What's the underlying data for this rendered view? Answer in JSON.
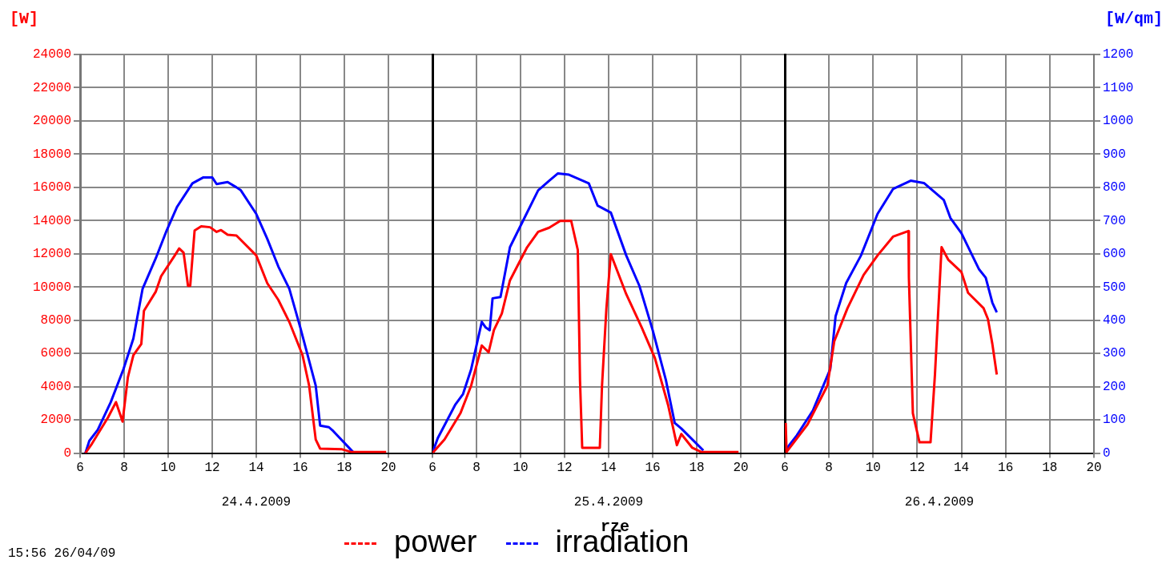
{
  "chart_data": [
    {
      "type": "line",
      "xlabel": "24.4.2009",
      "ylabel": "[W]",
      "xlim": [
        6,
        22
      ],
      "xticks": [
        6,
        8,
        10,
        12,
        14,
        16,
        18,
        20
      ],
      "ylim": [
        0,
        24000
      ],
      "yticks": [
        0,
        2000,
        4000,
        6000,
        8000,
        10000,
        12000,
        14000,
        16000,
        18000,
        20000,
        22000,
        24000
      ],
      "y2lim": [
        0,
        1200
      ],
      "grid": true,
      "legend": false,
      "marker": "none",
      "line_style": "solid",
      "annotations": [
        "15:56 26/04/09"
      ],
      "series": [
        {
          "color": "#ff0000",
          "x": [
            6.24,
            6.54,
            7.27,
            7.63,
            7.93,
            8.17,
            8.42,
            8.78,
            8.9,
            9.44,
            9.68,
            10.3,
            10.5,
            10.7,
            10.9,
            11.0,
            11.2,
            11.5,
            11.9,
            12.2,
            12.4,
            12.7,
            13.1,
            14.0,
            14.5,
            15.0,
            15.5,
            16.1,
            16.4,
            16.7,
            16.9,
            17.9,
            18.3,
            19.9
          ],
          "values": [
            0,
            570,
            2150,
            3070,
            1900,
            4570,
            5900,
            6570,
            8570,
            9730,
            10650,
            11900,
            12320,
            12070,
            10070,
            10070,
            13400,
            13650,
            13600,
            13320,
            13430,
            13150,
            13100,
            11900,
            10230,
            9230,
            7900,
            5900,
            4070,
            820,
            270,
            230,
            70,
            70
          ]
        },
        {
          "color": "#0000ff",
          "axis": "y2",
          "x": [
            6.24,
            6.42,
            6.8,
            7.39,
            7.97,
            8.42,
            8.84,
            9.44,
            9.93,
            10.4,
            11.1,
            11.6,
            12.0,
            12.2,
            12.7,
            13.1,
            13.3,
            14.0,
            14.5,
            15.0,
            15.5,
            16.0,
            16.3,
            16.7,
            16.9,
            17.3,
            17.5,
            18.4
          ],
          "values": [
            0,
            37,
            70,
            153,
            253,
            345,
            495,
            587,
            670,
            741,
            812,
            830,
            830,
            810,
            816,
            800,
            791,
            720,
            645,
            562,
            495,
            378,
            303,
            203,
            83,
            78,
            66,
            3
          ]
        }
      ]
    },
    {
      "type": "line",
      "xlabel": "25.4.2009",
      "xlim": [
        6,
        22
      ],
      "xticks": [
        6,
        8,
        10,
        12,
        14,
        16,
        18,
        20
      ],
      "ylim": [
        0,
        24000
      ],
      "yticks": [
        0,
        2000,
        4000,
        6000,
        8000,
        10000,
        12000,
        14000,
        16000,
        18000,
        20000,
        22000,
        24000
      ],
      "y2lim": [
        0,
        1200
      ],
      "y2ticks": [
        0,
        100,
        200,
        300,
        400,
        500,
        600,
        700,
        800,
        900,
        1000,
        1100,
        1200
      ],
      "tick_labels": "x",
      "grid": true,
      "legend": "bottom",
      "marker": "none",
      "line_style": "solid",
      "annotations": [
        "rze"
      ],
      "series": [
        {
          "name": "power",
          "color": "#ff0000",
          "x": [
            6.0,
            6.55,
            7.27,
            7.76,
            8.24,
            8.55,
            8.79,
            9.15,
            9.52,
            10.3,
            10.8,
            11.3,
            11.8,
            12.3,
            12.6,
            12.7,
            12.8,
            13.6,
            13.7,
            13.9,
            14.1,
            14.8,
            15.5,
            16.1,
            16.7,
            17.1,
            17.3,
            17.8,
            18.2,
            19.9
          ],
          "values": [
            0,
            820,
            2400,
            4070,
            6480,
            6070,
            7400,
            8400,
            10400,
            12400,
            13320,
            13570,
            13980,
            13980,
            12230,
            4400,
            320,
            320,
            4070,
            8730,
            11980,
            9570,
            7570,
            5730,
            2900,
            480,
            1150,
            320,
            70,
            70
          ]
        },
        {
          "name": "irradiation",
          "color": "#0000ff",
          "axis": "y2",
          "x": [
            6.0,
            6.24,
            7.03,
            7.39,
            7.76,
            8.24,
            8.42,
            8.6,
            8.73,
            9.09,
            9.52,
            10.2,
            10.8,
            11.3,
            11.7,
            12.2,
            13.1,
            13.5,
            14.1,
            14.8,
            15.4,
            16.0,
            16.6,
            17.0,
            17.3,
            18.3
          ],
          "values": [
            0,
            45,
            145,
            178,
            253,
            395,
            378,
            370,
            466,
            470,
            620,
            711,
            791,
            820,
            842,
            838,
            812,
            745,
            724,
            595,
            503,
            370,
            220,
            91,
            74,
            8
          ]
        }
      ]
    },
    {
      "type": "line",
      "xlabel": "26.4.2009",
      "y2label": "[W/qm]",
      "xlim": [
        6,
        20
      ],
      "xticks": [
        6,
        8,
        10,
        12,
        14,
        16,
        18,
        20
      ],
      "ylim": [
        0,
        24000
      ],
      "y2lim": [
        0,
        1200
      ],
      "y2ticks": [
        0,
        100,
        200,
        300,
        400,
        500,
        600,
        700,
        800,
        900,
        1000,
        1100,
        1200
      ],
      "grid": true,
      "legend": false,
      "marker": "none",
      "line_style": "solid",
      "series": [
        {
          "color": "#ff0000",
          "x": [
            6.04,
            6.08,
            7.03,
            7.93,
            8.24,
            8.84,
            9.57,
            10.2,
            10.9,
            11.6,
            11.62,
            11.8,
            12.1,
            12.6,
            12.8,
            13.1,
            13.4,
            14.0,
            14.3,
            15.0,
            15.2,
            15.4,
            15.6
          ],
          "values": [
            1820,
            70,
            1730,
            4070,
            6730,
            8730,
            10730,
            11900,
            13030,
            13370,
            10570,
            2400,
            650,
            650,
            4730,
            12400,
            11650,
            10900,
            9650,
            8730,
            8070,
            6570,
            4730
          ]
        },
        {
          "color": "#0000ff",
          "axis": "y2",
          "x": [
            6.06,
            6.54,
            7.27,
            8.06,
            8.3,
            8.78,
            9.45,
            10.2,
            10.9,
            11.7,
            12.3,
            13.2,
            13.5,
            14.0,
            14.8,
            15.1,
            15.4,
            15.6
          ],
          "values": [
            12,
            53,
            128,
            253,
            412,
            512,
            595,
            720,
            795,
            820,
            813,
            762,
            708,
            662,
            553,
            528,
            453,
            424
          ]
        }
      ]
    }
  ]
}
